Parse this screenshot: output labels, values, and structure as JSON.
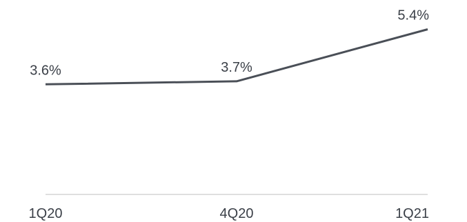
{
  "chart_data": {
    "type": "line",
    "categories": [
      "1Q20",
      "4Q20",
      "1Q21"
    ],
    "series": [
      {
        "values": [
          3.6,
          3.7,
          5.4
        ],
        "labels": [
          "3.6%",
          "3.7%",
          "5.4%"
        ]
      }
    ],
    "title": "",
    "xlabel": "",
    "ylabel": "",
    "ylim": [
      0,
      6
    ],
    "grid": false,
    "line_color": "#4a4f57",
    "axis_color": "#bfbfbf"
  }
}
